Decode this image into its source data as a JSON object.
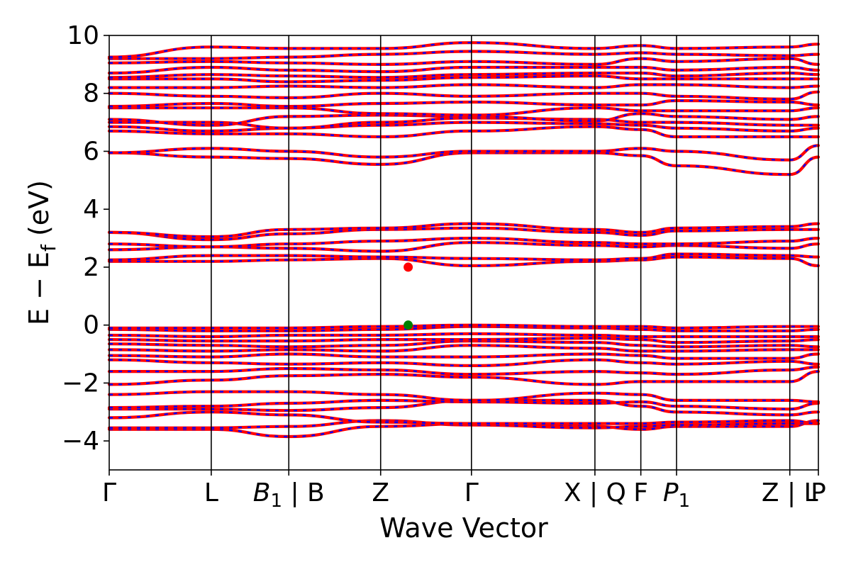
{
  "chart_data": {
    "type": "line",
    "title": "",
    "xlabel": "Wave Vector",
    "ylabel_parts": [
      "E − E",
      "f",
      " (eV)"
    ],
    "ylim": [
      -5,
      10
    ],
    "xlim": [
      0,
      6.95
    ],
    "y_ticks": [
      -4,
      -2,
      0,
      2,
      4,
      6,
      8,
      10
    ],
    "y_tick_labels": [
      "−4",
      "−2",
      "0",
      "2",
      "4",
      "6",
      "8",
      "10"
    ],
    "k_points": [
      {
        "x": 0.0,
        "label": "Γ"
      },
      {
        "x": 1.0,
        "label": "L"
      },
      {
        "x": 1.76,
        "label_main": "B",
        "label_sub": "1",
        "label_rest": " | B",
        "italic": true
      },
      {
        "x": 2.66,
        "label": "Z"
      },
      {
        "x": 3.55,
        "label": "Γ"
      },
      {
        "x": 4.76,
        "label": "X | Q"
      },
      {
        "x": 5.21,
        "label": "F"
      },
      {
        "x": 5.56,
        "label_main": "P",
        "label_sub": "1",
        "label_rest": "",
        "italic": true
      },
      {
        "x": 6.67,
        "label": "Z | L"
      },
      {
        "x": 6.95,
        "label": "P"
      }
    ],
    "colors": {
      "band_red": "#ff0000",
      "band_blue": "#0000ff",
      "cbm_marker": "#ff0000",
      "vbm_marker": "#008000"
    },
    "markers": [
      {
        "name": "cbm",
        "x": 2.93,
        "y": 2.0,
        "color": "#ff0000"
      },
      {
        "name": "vbm",
        "x": 2.93,
        "y": 0.0,
        "color": "#008000"
      }
    ],
    "series": [
      {
        "values": [
          -3.6,
          -3.6,
          -3.85,
          -3.5,
          -3.4,
          -3.5,
          -3.6,
          -3.5,
          -3.5,
          -3.3,
          -3.6
        ]
      },
      {
        "values": [
          -3.55,
          -3.55,
          -3.5,
          -3.3,
          -3.45,
          -3.55,
          -3.5,
          -3.45,
          -3.4,
          -3.4,
          -3.5
        ]
      },
      {
        "values": [
          -3.2,
          -3.0,
          -3.1,
          -3.35,
          -3.4,
          -3.4,
          -3.4,
          -3.35,
          -3.3,
          -3.4,
          -3.3
        ]
      },
      {
        "values": [
          -2.9,
          -2.9,
          -2.95,
          -2.85,
          -2.6,
          -2.6,
          -2.8,
          -3.0,
          -3.1,
          -3.0,
          -2.9
        ]
      },
      {
        "values": [
          -2.85,
          -2.8,
          -2.7,
          -2.6,
          -2.65,
          -2.7,
          -2.65,
          -2.8,
          -2.9,
          -2.7,
          -2.7
        ]
      },
      {
        "values": [
          -2.4,
          -2.3,
          -2.3,
          -2.4,
          -2.6,
          -2.35,
          -2.4,
          -2.6,
          -2.6,
          -2.65,
          -2.4
        ]
      },
      {
        "values": [
          -2.05,
          -1.9,
          -1.75,
          -1.7,
          -1.8,
          -2.05,
          -1.95,
          -1.95,
          -1.95,
          -1.6,
          -2.0
        ]
      },
      {
        "values": [
          -1.6,
          -1.6,
          -1.5,
          -1.55,
          -1.7,
          -1.6,
          -1.65,
          -1.7,
          -1.55,
          -1.45,
          -1.6
        ]
      },
      {
        "values": [
          -1.2,
          -1.3,
          -1.35,
          -1.3,
          -1.4,
          -1.2,
          -1.3,
          -1.35,
          -1.25,
          -1.35,
          -1.3
        ]
      },
      {
        "values": [
          -1.05,
          -1.1,
          -1.0,
          -1.1,
          -1.1,
          -1.0,
          -1.05,
          -1.15,
          -1.15,
          -1.0,
          -1.0
        ]
      },
      {
        "values": [
          -0.85,
          -0.9,
          -0.85,
          -0.9,
          -0.7,
          -0.8,
          -0.9,
          -0.9,
          -0.85,
          -0.85,
          -0.85
        ]
      },
      {
        "values": [
          -0.65,
          -0.7,
          -0.75,
          -0.7,
          -0.55,
          -0.6,
          -0.7,
          -0.75,
          -0.7,
          -0.75,
          -0.7
        ]
      },
      {
        "values": [
          -0.5,
          -0.55,
          -0.55,
          -0.5,
          -0.5,
          -0.45,
          -0.5,
          -0.6,
          -0.55,
          -0.5,
          -0.5
        ]
      },
      {
        "values": [
          -0.35,
          -0.4,
          -0.35,
          -0.35,
          -0.3,
          -0.35,
          -0.4,
          -0.4,
          -0.4,
          -0.4,
          -0.4
        ]
      },
      {
        "values": [
          -0.15,
          -0.2,
          -0.2,
          -0.15,
          -0.05,
          -0.1,
          -0.15,
          -0.2,
          -0.2,
          -0.15,
          -0.15
        ]
      },
      {
        "values": [
          -0.1,
          -0.1,
          -0.1,
          -0.05,
          0.0,
          -0.05,
          -0.05,
          -0.1,
          -0.05,
          -0.05,
          -0.05
        ]
      },
      {
        "values": [
          2.2,
          2.2,
          2.25,
          2.3,
          2.05,
          2.2,
          2.25,
          2.35,
          2.3,
          2.05,
          2.3
        ]
      },
      {
        "values": [
          2.25,
          2.4,
          2.4,
          2.35,
          2.3,
          2.25,
          2.3,
          2.45,
          2.4,
          2.35,
          2.3
        ]
      },
      {
        "values": [
          2.6,
          2.7,
          2.65,
          2.55,
          2.85,
          2.75,
          2.7,
          2.75,
          2.65,
          2.8,
          2.7
        ]
      },
      {
        "values": [
          2.8,
          2.7,
          2.8,
          2.9,
          3.0,
          2.85,
          2.8,
          2.8,
          2.9,
          3.0,
          2.9
        ]
      },
      {
        "values": [
          3.2,
          2.95,
          3.15,
          3.3,
          3.35,
          3.2,
          3.1,
          3.25,
          3.3,
          3.3,
          3.2
        ]
      },
      {
        "values": [
          3.2,
          3.05,
          3.3,
          3.35,
          3.5,
          3.3,
          3.2,
          3.35,
          3.4,
          3.5,
          3.3
        ]
      },
      {
        "values": [
          5.95,
          5.8,
          5.75,
          5.55,
          5.95,
          5.95,
          5.85,
          5.5,
          5.2,
          5.8,
          5.4
        ]
      },
      {
        "values": [
          5.95,
          6.1,
          6.0,
          5.8,
          6.0,
          6.0,
          6.1,
          6.0,
          5.7,
          6.2,
          6.2
        ]
      },
      {
        "values": [
          6.7,
          6.6,
          6.6,
          6.5,
          6.7,
          6.85,
          6.75,
          6.5,
          6.5,
          6.5,
          6.4
        ]
      },
      {
        "values": [
          6.85,
          6.7,
          6.8,
          6.9,
          7.0,
          6.95,
          6.9,
          6.8,
          6.7,
          6.8,
          6.8
        ]
      },
      {
        "values": [
          7.0,
          7.0,
          6.8,
          7.0,
          7.15,
          7.1,
          7.0,
          7.0,
          6.9,
          6.9,
          6.9
        ]
      },
      {
        "values": [
          7.1,
          6.9,
          7.2,
          7.25,
          7.2,
          7.05,
          7.3,
          7.2,
          7.1,
          7.2,
          7.2
        ]
      },
      {
        "values": [
          7.5,
          7.5,
          7.5,
          7.3,
          7.25,
          7.5,
          7.4,
          7.4,
          7.4,
          7.5,
          7.5
        ]
      },
      {
        "values": [
          7.55,
          7.65,
          7.55,
          7.65,
          7.7,
          7.6,
          7.6,
          7.75,
          7.7,
          7.6,
          7.7
        ]
      },
      {
        "values": [
          8.0,
          7.9,
          7.85,
          8.0,
          7.9,
          8.0,
          8.0,
          7.9,
          7.8,
          8.05,
          7.9
        ]
      },
      {
        "values": [
          8.2,
          8.2,
          8.25,
          8.2,
          8.3,
          8.2,
          8.3,
          8.3,
          8.2,
          8.25,
          8.3
        ]
      },
      {
        "values": [
          8.5,
          8.5,
          8.4,
          8.45,
          8.55,
          8.6,
          8.5,
          8.5,
          8.5,
          8.5,
          8.5
        ]
      },
      {
        "values": [
          8.55,
          8.65,
          8.6,
          8.55,
          8.65,
          8.7,
          8.7,
          8.6,
          8.7,
          8.65,
          8.6
        ]
      },
      {
        "values": [
          8.7,
          8.9,
          8.8,
          8.75,
          8.9,
          8.9,
          8.9,
          8.8,
          8.9,
          8.8,
          8.8
        ]
      },
      {
        "values": [
          9.05,
          9.1,
          9.05,
          9.0,
          9.1,
          9.0,
          9.2,
          9.1,
          9.2,
          9.0,
          9.2
        ]
      },
      {
        "values": [
          9.2,
          9.2,
          9.25,
          9.35,
          9.45,
          9.35,
          9.4,
          9.35,
          9.3,
          9.35,
          9.4
        ]
      },
      {
        "values": [
          9.25,
          9.6,
          9.55,
          9.55,
          9.75,
          9.55,
          9.65,
          9.55,
          9.6,
          9.7,
          9.5
        ]
      }
    ]
  }
}
